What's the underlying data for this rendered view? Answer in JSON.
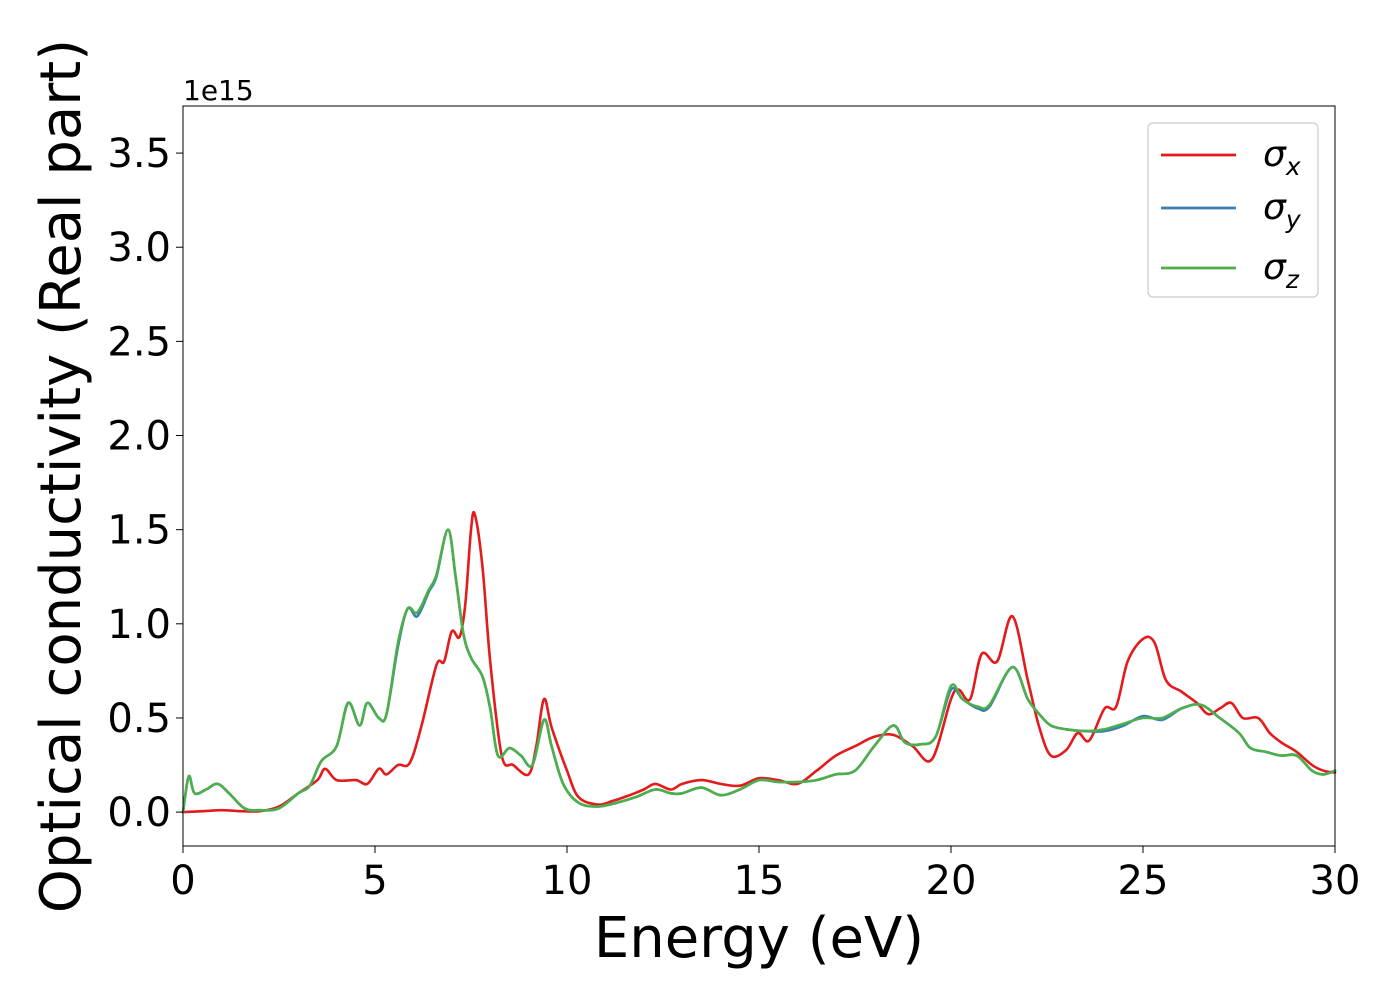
{
  "chart_data": {
    "type": "line",
    "xlabel": "Energy (eV)",
    "ylabel": "Optical conductivity (Real part)",
    "offset_label": "1e15",
    "xlim": [
      0,
      30
    ],
    "ylim": [
      -0.18,
      3.75
    ],
    "xticks": [
      0,
      5,
      10,
      15,
      20,
      25,
      30
    ],
    "xtick_labels": [
      "0",
      "5",
      "10",
      "15",
      "20",
      "25",
      "30"
    ],
    "yticks": [
      0.0,
      0.5,
      1.0,
      1.5,
      2.0,
      2.5,
      3.0,
      3.5
    ],
    "ytick_labels": [
      "0.0",
      "0.5",
      "1.0",
      "1.5",
      "2.0",
      "2.5",
      "3.0",
      "3.5"
    ],
    "grid": false,
    "legend_position": "top-right",
    "series": [
      {
        "name": "σ",
        "subscript": "x",
        "color": "#e41a1c",
        "points": [
          [
            0,
            0
          ],
          [
            0.5,
            0.005
          ],
          [
            1,
            0.01
          ],
          [
            1.5,
            0.005
          ],
          [
            2,
            0.005
          ],
          [
            2.5,
            0.03
          ],
          [
            3,
            0.1
          ],
          [
            3.5,
            0.17
          ],
          [
            3.7,
            0.23
          ],
          [
            4,
            0.17
          ],
          [
            4.5,
            0.17
          ],
          [
            4.8,
            0.15
          ],
          [
            5.1,
            0.23
          ],
          [
            5.3,
            0.2
          ],
          [
            5.6,
            0.25
          ],
          [
            5.9,
            0.26
          ],
          [
            6.2,
            0.45
          ],
          [
            6.6,
            0.78
          ],
          [
            6.8,
            0.8
          ],
          [
            7.0,
            0.96
          ],
          [
            7.2,
            0.93
          ],
          [
            7.35,
            1.1
          ],
          [
            7.5,
            1.5
          ],
          [
            7.6,
            1.58
          ],
          [
            7.8,
            1.3
          ],
          [
            8.0,
            0.8
          ],
          [
            8.3,
            0.3
          ],
          [
            8.6,
            0.25
          ],
          [
            9.0,
            0.2
          ],
          [
            9.2,
            0.35
          ],
          [
            9.4,
            0.6
          ],
          [
            9.6,
            0.45
          ],
          [
            10,
            0.22
          ],
          [
            10.3,
            0.08
          ],
          [
            10.8,
            0.04
          ],
          [
            11.2,
            0.06
          ],
          [
            11.5,
            0.08
          ],
          [
            12,
            0.12
          ],
          [
            12.3,
            0.15
          ],
          [
            12.7,
            0.12
          ],
          [
            13,
            0.15
          ],
          [
            13.5,
            0.17
          ],
          [
            14,
            0.15
          ],
          [
            14.5,
            0.14
          ],
          [
            15,
            0.18
          ],
          [
            15.5,
            0.17
          ],
          [
            16,
            0.15
          ],
          [
            16.5,
            0.22
          ],
          [
            17,
            0.3
          ],
          [
            17.5,
            0.35
          ],
          [
            18,
            0.4
          ],
          [
            18.5,
            0.41
          ],
          [
            19,
            0.35
          ],
          [
            19.5,
            0.28
          ],
          [
            20,
            0.6
          ],
          [
            20.2,
            0.65
          ],
          [
            20.5,
            0.6
          ],
          [
            20.8,
            0.84
          ],
          [
            21.2,
            0.8
          ],
          [
            21.6,
            1.04
          ],
          [
            22,
            0.7
          ],
          [
            22.3,
            0.45
          ],
          [
            22.6,
            0.3
          ],
          [
            23,
            0.33
          ],
          [
            23.3,
            0.42
          ],
          [
            23.6,
            0.38
          ],
          [
            24,
            0.55
          ],
          [
            24.3,
            0.56
          ],
          [
            24.6,
            0.8
          ],
          [
            25,
            0.92
          ],
          [
            25.3,
            0.9
          ],
          [
            25.6,
            0.7
          ],
          [
            26,
            0.64
          ],
          [
            26.4,
            0.58
          ],
          [
            26.7,
            0.52
          ],
          [
            27,
            0.55
          ],
          [
            27.3,
            0.58
          ],
          [
            27.6,
            0.5
          ],
          [
            28,
            0.5
          ],
          [
            28.3,
            0.42
          ],
          [
            28.6,
            0.37
          ],
          [
            29,
            0.32
          ],
          [
            29.4,
            0.25
          ],
          [
            29.7,
            0.22
          ],
          [
            30,
            0.21
          ]
        ]
      },
      {
        "name": "σ",
        "subscript": "y",
        "color": "#377eb8",
        "points": [
          [
            0,
            0
          ],
          [
            0.15,
            0.19
          ],
          [
            0.3,
            0.1
          ],
          [
            0.6,
            0.12
          ],
          [
            0.9,
            0.15
          ],
          [
            1.2,
            0.1
          ],
          [
            1.6,
            0.02
          ],
          [
            2,
            0.01
          ],
          [
            2.5,
            0.02
          ],
          [
            3,
            0.1
          ],
          [
            3.3,
            0.14
          ],
          [
            3.6,
            0.27
          ],
          [
            4,
            0.35
          ],
          [
            4.3,
            0.58
          ],
          [
            4.6,
            0.46
          ],
          [
            4.8,
            0.58
          ],
          [
            5.1,
            0.5
          ],
          [
            5.3,
            0.52
          ],
          [
            5.6,
            0.88
          ],
          [
            5.85,
            1.08
          ],
          [
            6.1,
            1.04
          ],
          [
            6.4,
            1.17
          ],
          [
            6.6,
            1.25
          ],
          [
            6.9,
            1.5
          ],
          [
            7.1,
            1.25
          ],
          [
            7.3,
            0.95
          ],
          [
            7.5,
            0.82
          ],
          [
            7.8,
            0.72
          ],
          [
            8.0,
            0.55
          ],
          [
            8.2,
            0.3
          ],
          [
            8.5,
            0.34
          ],
          [
            8.8,
            0.3
          ],
          [
            9.1,
            0.25
          ],
          [
            9.4,
            0.49
          ],
          [
            9.6,
            0.35
          ],
          [
            9.9,
            0.15
          ],
          [
            10.3,
            0.05
          ],
          [
            10.8,
            0.03
          ],
          [
            11.3,
            0.05
          ],
          [
            11.8,
            0.08
          ],
          [
            12.3,
            0.12
          ],
          [
            12.7,
            0.1
          ],
          [
            13,
            0.1
          ],
          [
            13.5,
            0.13
          ],
          [
            14,
            0.09
          ],
          [
            14.5,
            0.12
          ],
          [
            15,
            0.17
          ],
          [
            15.5,
            0.16
          ],
          [
            16,
            0.16
          ],
          [
            16.5,
            0.17
          ],
          [
            17,
            0.2
          ],
          [
            17.5,
            0.22
          ],
          [
            18,
            0.35
          ],
          [
            18.5,
            0.46
          ],
          [
            18.8,
            0.37
          ],
          [
            19.2,
            0.36
          ],
          [
            19.6,
            0.4
          ],
          [
            20,
            0.65
          ],
          [
            20.3,
            0.6
          ],
          [
            20.7,
            0.55
          ],
          [
            21,
            0.56
          ],
          [
            21.6,
            0.77
          ],
          [
            22,
            0.6
          ],
          [
            22.3,
            0.52
          ],
          [
            22.6,
            0.46
          ],
          [
            23,
            0.44
          ],
          [
            23.5,
            0.43
          ],
          [
            24,
            0.43
          ],
          [
            24.5,
            0.46
          ],
          [
            25,
            0.51
          ],
          [
            25.5,
            0.49
          ],
          [
            26,
            0.55
          ],
          [
            26.5,
            0.57
          ],
          [
            27,
            0.5
          ],
          [
            27.5,
            0.42
          ],
          [
            27.8,
            0.34
          ],
          [
            28.2,
            0.32
          ],
          [
            28.6,
            0.3
          ],
          [
            29,
            0.3
          ],
          [
            29.4,
            0.22
          ],
          [
            29.7,
            0.2
          ],
          [
            30,
            0.22
          ]
        ]
      },
      {
        "name": "σ",
        "subscript": "z",
        "color": "#4daf4a",
        "points": [
          [
            0,
            0
          ],
          [
            0.15,
            0.19
          ],
          [
            0.3,
            0.1
          ],
          [
            0.6,
            0.12
          ],
          [
            0.9,
            0.15
          ],
          [
            1.2,
            0.1
          ],
          [
            1.6,
            0.02
          ],
          [
            2,
            0.01
          ],
          [
            2.5,
            0.02
          ],
          [
            3,
            0.1
          ],
          [
            3.3,
            0.14
          ],
          [
            3.6,
            0.27
          ],
          [
            4,
            0.35
          ],
          [
            4.3,
            0.58
          ],
          [
            4.6,
            0.46
          ],
          [
            4.8,
            0.58
          ],
          [
            5.1,
            0.5
          ],
          [
            5.3,
            0.52
          ],
          [
            5.6,
            0.9
          ],
          [
            5.85,
            1.08
          ],
          [
            6.1,
            1.06
          ],
          [
            6.4,
            1.18
          ],
          [
            6.6,
            1.26
          ],
          [
            6.9,
            1.5
          ],
          [
            7.1,
            1.25
          ],
          [
            7.3,
            0.95
          ],
          [
            7.5,
            0.82
          ],
          [
            7.8,
            0.72
          ],
          [
            8.0,
            0.55
          ],
          [
            8.2,
            0.3
          ],
          [
            8.5,
            0.34
          ],
          [
            8.8,
            0.3
          ],
          [
            9.1,
            0.25
          ],
          [
            9.4,
            0.49
          ],
          [
            9.6,
            0.35
          ],
          [
            9.9,
            0.15
          ],
          [
            10.3,
            0.05
          ],
          [
            10.8,
            0.03
          ],
          [
            11.3,
            0.05
          ],
          [
            11.8,
            0.08
          ],
          [
            12.3,
            0.12
          ],
          [
            12.7,
            0.1
          ],
          [
            13,
            0.1
          ],
          [
            13.5,
            0.13
          ],
          [
            14,
            0.09
          ],
          [
            14.5,
            0.12
          ],
          [
            15,
            0.17
          ],
          [
            15.5,
            0.16
          ],
          [
            16,
            0.16
          ],
          [
            16.5,
            0.17
          ],
          [
            17,
            0.2
          ],
          [
            17.5,
            0.22
          ],
          [
            18,
            0.35
          ],
          [
            18.5,
            0.46
          ],
          [
            18.8,
            0.37
          ],
          [
            19.2,
            0.36
          ],
          [
            19.6,
            0.4
          ],
          [
            20,
            0.67
          ],
          [
            20.3,
            0.6
          ],
          [
            20.7,
            0.56
          ],
          [
            21,
            0.57
          ],
          [
            21.6,
            0.77
          ],
          [
            22,
            0.6
          ],
          [
            22.3,
            0.52
          ],
          [
            22.6,
            0.46
          ],
          [
            23,
            0.44
          ],
          [
            23.5,
            0.43
          ],
          [
            24,
            0.44
          ],
          [
            24.5,
            0.47
          ],
          [
            25,
            0.5
          ],
          [
            25.5,
            0.5
          ],
          [
            26,
            0.55
          ],
          [
            26.5,
            0.57
          ],
          [
            27,
            0.5
          ],
          [
            27.5,
            0.42
          ],
          [
            27.8,
            0.34
          ],
          [
            28.2,
            0.32
          ],
          [
            28.6,
            0.3
          ],
          [
            29,
            0.3
          ],
          [
            29.4,
            0.22
          ],
          [
            29.7,
            0.2
          ],
          [
            30,
            0.22
          ]
        ]
      }
    ]
  }
}
